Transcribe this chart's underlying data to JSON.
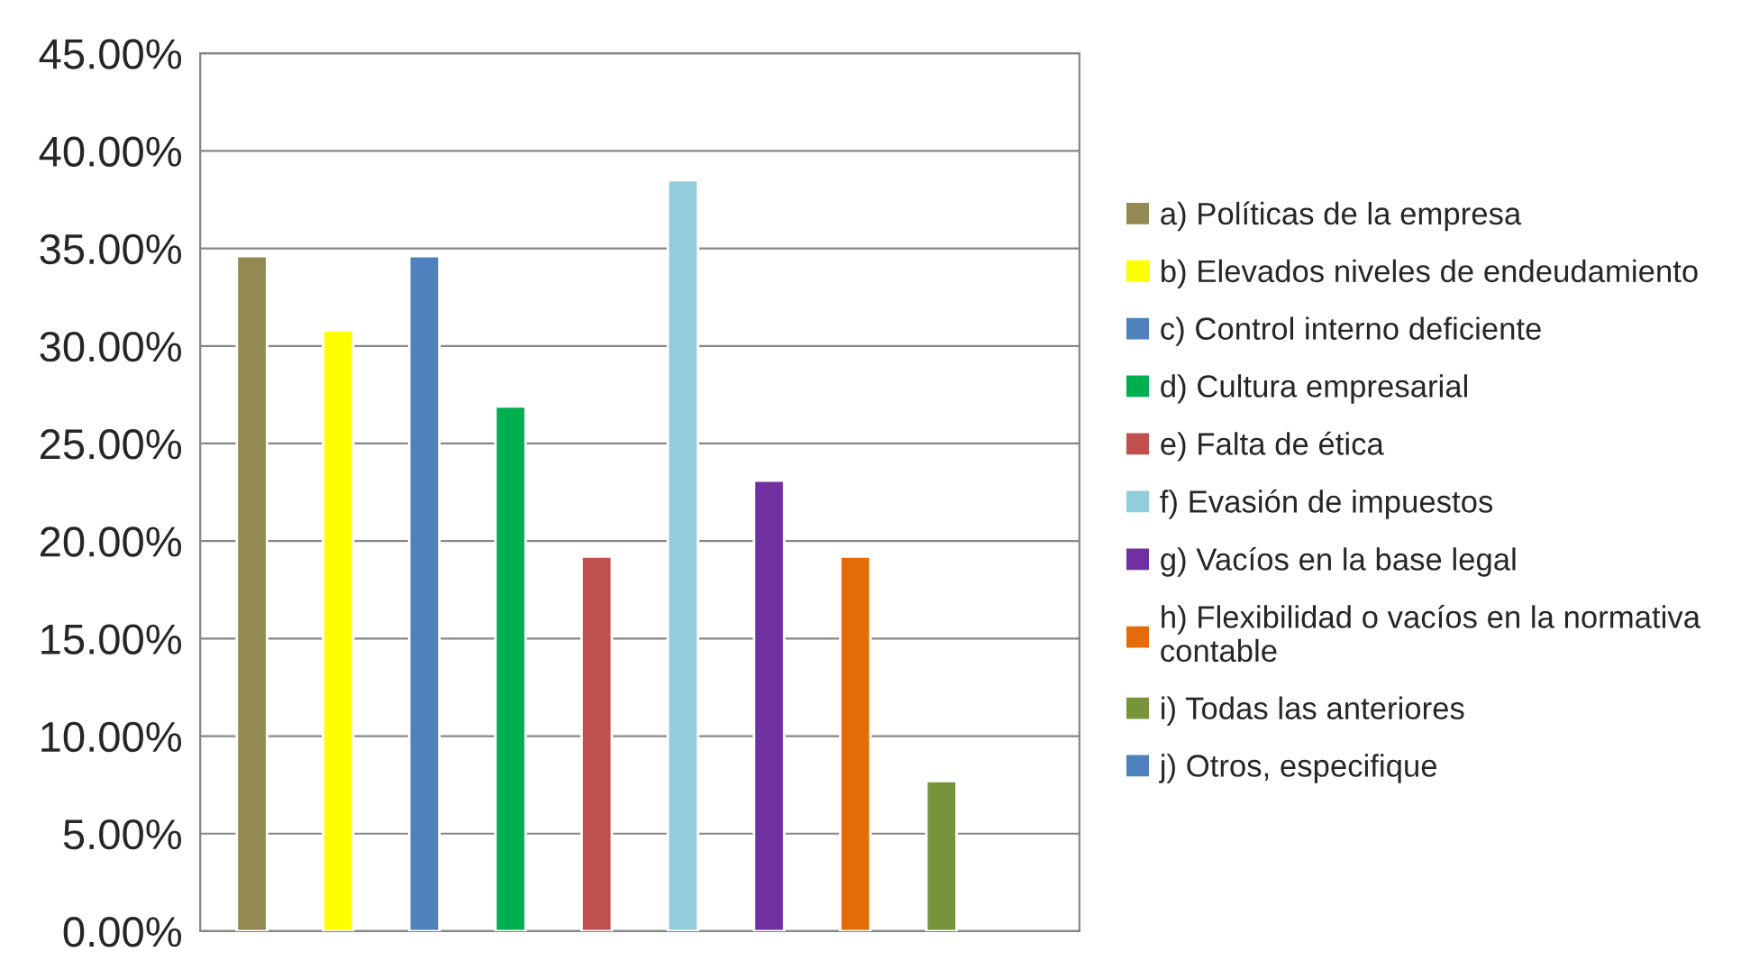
{
  "chart_data": {
    "type": "bar",
    "categories": [
      null,
      null,
      null,
      null,
      null,
      null,
      null,
      null,
      null,
      null
    ],
    "series": [
      {
        "name": "a) Políticas de la empresa",
        "color": "#938953",
        "values": [
          34.6,
          null,
          null,
          null,
          null,
          null,
          null,
          null,
          null,
          null
        ]
      },
      {
        "name": "b) Elevados niveles de endeudamiento",
        "color": "#ffff00",
        "values": [
          null,
          30.8,
          null,
          null,
          null,
          null,
          null,
          null,
          null,
          null
        ]
      },
      {
        "name": "c) Control interno deficiente",
        "color": "#4f81bd",
        "values": [
          null,
          null,
          34.6,
          null,
          null,
          null,
          null,
          null,
          null,
          null
        ]
      },
      {
        "name": "d) Cultura empresarial",
        "color": "#00b050",
        "values": [
          null,
          null,
          null,
          26.9,
          null,
          null,
          null,
          null,
          null,
          null
        ]
      },
      {
        "name": "e) Falta de ética",
        "color": "#c0504d",
        "values": [
          null,
          null,
          null,
          null,
          19.2,
          null,
          null,
          null,
          null,
          null
        ]
      },
      {
        "name": "f) Evasión de impuestos",
        "color": "#92cddc",
        "values": [
          null,
          null,
          null,
          null,
          null,
          38.5,
          null,
          null,
          null,
          null
        ]
      },
      {
        "name": "g) Vacíos en la base legal",
        "color": "#7030a0",
        "values": [
          null,
          null,
          null,
          null,
          null,
          null,
          23.1,
          null,
          null,
          null
        ]
      },
      {
        "name": "h) Flexibilidad o vacíos en la normativa contable",
        "color": "#e36c09",
        "values": [
          null,
          null,
          null,
          null,
          null,
          null,
          null,
          19.2,
          null,
          null
        ]
      },
      {
        "name": "i) Todas las anteriores",
        "color": "#77933c",
        "values": [
          null,
          null,
          null,
          null,
          null,
          null,
          null,
          null,
          7.7,
          null
        ]
      },
      {
        "name": "j) Otros, especifique",
        "color": "#4f81bd",
        "values": [
          null,
          null,
          null,
          null,
          null,
          null,
          null,
          null,
          null,
          null
        ]
      }
    ],
    "ylim": [
      0,
      45
    ],
    "yticks": [
      {
        "value": 0,
        "label": "0.00%"
      },
      {
        "value": 5,
        "label": "5.00%"
      },
      {
        "value": 10,
        "label": "10.00%"
      },
      {
        "value": 15,
        "label": "15.00%"
      },
      {
        "value": 20,
        "label": "20.00%"
      },
      {
        "value": 25,
        "label": "25.00%"
      },
      {
        "value": 30,
        "label": "30.00%"
      },
      {
        "value": 35,
        "label": "35.00%"
      },
      {
        "value": 40,
        "label": "40.00%"
      },
      {
        "value": 45,
        "label": "45.00%"
      }
    ],
    "grid": "y",
    "legend": "right"
  }
}
